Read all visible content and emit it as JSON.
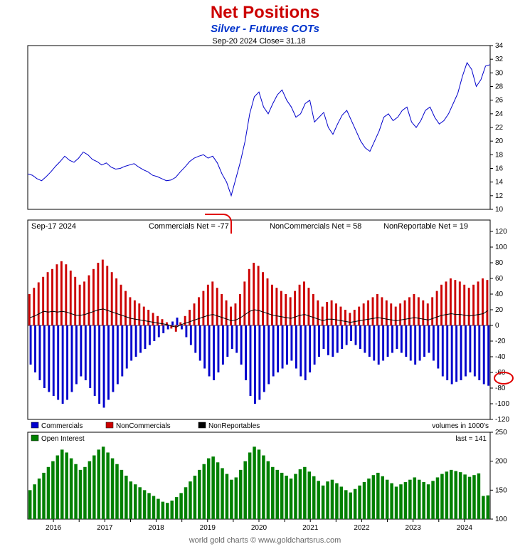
{
  "title": {
    "text": "Net Positions",
    "color": "#cc0000",
    "fontsize": 24
  },
  "subtitle": {
    "text": "Silver - Futures COTs",
    "color": "#0033cc",
    "fontsize": 15
  },
  "pricePanel": {
    "header": "Sep-20  2024   Close= 31.18",
    "line_color": "#0000cc",
    "background": "#ffffff",
    "border_color": "#000000",
    "ylim": [
      10,
      34
    ],
    "ytick_step": 2,
    "yticks": [
      10,
      12,
      14,
      16,
      18,
      20,
      22,
      24,
      26,
      28,
      30,
      32,
      34
    ],
    "x_years": [
      2016,
      2017,
      2018,
      2019,
      2020,
      2021,
      2022,
      2023,
      2024
    ],
    "series": [
      15.2,
      15.0,
      14.5,
      14.2,
      14.8,
      15.5,
      16.3,
      17.0,
      17.8,
      17.2,
      16.9,
      17.5,
      18.4,
      18.0,
      17.3,
      17.0,
      16.5,
      16.8,
      16.2,
      15.9,
      16.0,
      16.3,
      16.5,
      16.7,
      16.2,
      15.8,
      15.5,
      15.0,
      14.8,
      14.5,
      14.2,
      14.3,
      14.7,
      15.5,
      16.2,
      17.0,
      17.5,
      17.8,
      18.0,
      17.5,
      17.8,
      16.8,
      15.2,
      14.0,
      12.0,
      14.5,
      17.0,
      20.0,
      24.0,
      26.5,
      27.2,
      25.0,
      24.0,
      25.5,
      26.8,
      27.5,
      26.0,
      25.0,
      23.5,
      24.0,
      25.5,
      26.0,
      22.8,
      23.5,
      24.2,
      22.0,
      21.0,
      22.5,
      23.8,
      24.5,
      23.0,
      21.5,
      20.0,
      19.0,
      18.5,
      20.0,
      21.5,
      23.5,
      24.0,
      23.0,
      23.5,
      24.5,
      25.0,
      22.8,
      22.0,
      23.0,
      24.5,
      25.0,
      23.5,
      22.5,
      23.0,
      24.0,
      25.5,
      27.0,
      29.5,
      31.5,
      30.5,
      28.0,
      29.0,
      31.0,
      31.2
    ]
  },
  "cotPanel": {
    "header_date": "Sep-17  2024",
    "header_commercials": "Commercials Net = -77",
    "header_noncommercials": "NonCommercials Net = 58",
    "header_nonreportable": "NonReportable Net = 19",
    "ylim": [
      -120,
      120
    ],
    "ytick_step": 20,
    "yticks": [
      -120,
      -100,
      -80,
      -60,
      -40,
      -20,
      0,
      20,
      40,
      60,
      80,
      100,
      120
    ],
    "commercials_color": "#0000cc",
    "noncommercials_color": "#cc0000",
    "nonreportables_color": "#000000",
    "commercials": [
      -50,
      -60,
      -70,
      -80,
      -85,
      -90,
      -95,
      -100,
      -95,
      -85,
      -75,
      -65,
      -70,
      -80,
      -90,
      -100,
      -105,
      -95,
      -85,
      -75,
      -65,
      -55,
      -45,
      -40,
      -35,
      -30,
      -25,
      -20,
      -15,
      -10,
      -5,
      5,
      10,
      -5,
      -15,
      -25,
      -35,
      -45,
      -55,
      -65,
      -70,
      -60,
      -50,
      -40,
      -30,
      -35,
      -50,
      -70,
      -90,
      -100,
      -95,
      -85,
      -75,
      -65,
      -60,
      -55,
      -50,
      -45,
      -55,
      -65,
      -70,
      -60,
      -50,
      -40,
      -30,
      -38,
      -40,
      -35,
      -30,
      -25,
      -20,
      -25,
      -30,
      -35,
      -40,
      -45,
      -50,
      -45,
      -40,
      -35,
      -30,
      -35,
      -40,
      -45,
      -50,
      -45,
      -40,
      -35,
      -45,
      -55,
      -65,
      -70,
      -75,
      -72,
      -70,
      -65,
      -60,
      -65,
      -70,
      -75,
      -77
    ],
    "noncommercials": [
      40,
      48,
      55,
      62,
      68,
      72,
      78,
      82,
      78,
      70,
      62,
      52,
      56,
      64,
      72,
      80,
      84,
      76,
      68,
      60,
      52,
      44,
      36,
      32,
      28,
      24,
      20,
      16,
      12,
      8,
      4,
      -4,
      -8,
      4,
      12,
      20,
      28,
      36,
      44,
      52,
      56,
      48,
      40,
      32,
      24,
      28,
      40,
      56,
      72,
      80,
      76,
      68,
      60,
      52,
      48,
      44,
      40,
      36,
      44,
      52,
      56,
      48,
      40,
      32,
      24,
      30,
      32,
      28,
      24,
      20,
      16,
      20,
      24,
      28,
      32,
      36,
      40,
      36,
      32,
      28,
      24,
      28,
      32,
      36,
      40,
      36,
      32,
      28,
      36,
      44,
      52,
      56,
      60,
      58,
      56,
      52,
      48,
      52,
      56,
      60,
      58
    ],
    "nonreportables": [
      10,
      12,
      15,
      18,
      17,
      18,
      17,
      18,
      17,
      15,
      13,
      13,
      14,
      16,
      18,
      20,
      21,
      19,
      17,
      15,
      13,
      11,
      9,
      8,
      7,
      6,
      5,
      4,
      3,
      2,
      1,
      -1,
      -2,
      1,
      3,
      5,
      7,
      9,
      11,
      13,
      14,
      12,
      10,
      8,
      6,
      7,
      10,
      14,
      18,
      20,
      19,
      17,
      15,
      13,
      12,
      11,
      10,
      9,
      11,
      13,
      14,
      12,
      10,
      8,
      6,
      8,
      8,
      7,
      6,
      5,
      4,
      5,
      6,
      7,
      8,
      9,
      10,
      9,
      8,
      7,
      6,
      7,
      8,
      9,
      10,
      9,
      8,
      7,
      9,
      11,
      13,
      14,
      15,
      14,
      14,
      13,
      12,
      13,
      14,
      15,
      19
    ],
    "legend": {
      "commercials": "Commercials",
      "noncommercials": "NonCommercials",
      "nonreportables": "NonReportables"
    }
  },
  "oiPanel": {
    "label": "Open Interest",
    "volumes_label": "volumes in 1000's",
    "last_label": "last = 141",
    "color": "#008000",
    "ylim": [
      100,
      250
    ],
    "ytick_step": 50,
    "yticks": [
      100,
      150,
      200,
      250
    ],
    "series": [
      150,
      160,
      170,
      180,
      190,
      200,
      210,
      220,
      215,
      205,
      195,
      185,
      190,
      200,
      210,
      220,
      225,
      215,
      205,
      195,
      185,
      175,
      165,
      160,
      155,
      150,
      145,
      140,
      135,
      130,
      128,
      132,
      138,
      145,
      155,
      165,
      175,
      185,
      195,
      205,
      208,
      198,
      188,
      178,
      168,
      172,
      185,
      200,
      215,
      225,
      220,
      210,
      200,
      190,
      185,
      180,
      175,
      170,
      178,
      186,
      190,
      182,
      174,
      166,
      158,
      165,
      168,
      162,
      156,
      150,
      146,
      152,
      158,
      164,
      170,
      176,
      180,
      174,
      168,
      162,
      156,
      160,
      164,
      168,
      172,
      168,
      164,
      160,
      166,
      172,
      178,
      182,
      185,
      183,
      181,
      177,
      173,
      176,
      179,
      140,
      141
    ]
  },
  "footer": "world gold charts © www.goldchartsrus.com"
}
